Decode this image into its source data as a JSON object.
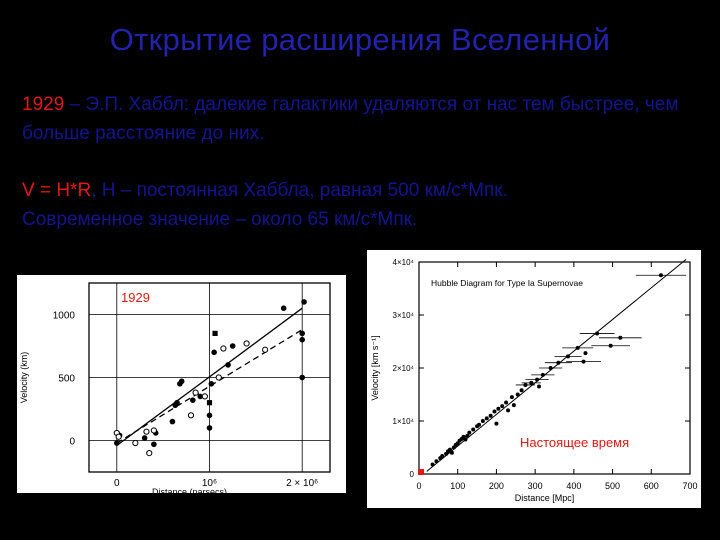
{
  "title": "Открытие расширения Вселенной",
  "para1": {
    "year": "1929",
    "rest": " – Э.П. Хаббл: далекие галактики удаляются от нас тем быстрее, чем больше расстояние до них."
  },
  "para2": {
    "formula": "V = H*R",
    "line1": ", H – постоянная Хаббла, равная 500 км/с*Мпк.",
    "line2": "Современное значение – около 65 км/с*Мпк."
  },
  "colors": {
    "background": "#000000",
    "title": "#2222aa",
    "text": "#14148c",
    "accent": "#e01818"
  },
  "chart_data": [
    {
      "type": "scatter",
      "overlay_label": "1929",
      "xlabel": "Distance (parsecs)",
      "ylabel": "Velocity (km)",
      "xticks": [
        {
          "value": 0,
          "label": "0"
        },
        {
          "value": 1000000,
          "label": "10⁶"
        },
        {
          "value": 2000000,
          "label": "2 × 10⁶"
        }
      ],
      "yticks": [
        {
          "value": 0,
          "label": "0"
        },
        {
          "value": 500,
          "label": "500"
        },
        {
          "value": 1000,
          "label": "1000"
        }
      ],
      "xlim": [
        -300000,
        2300000
      ],
      "ylim": [
        -250,
        1250
      ],
      "grid": true,
      "series": [
        {
          "marker": "filled",
          "points": [
            [
              0,
              -20
            ],
            [
              30000,
              40
            ],
            [
              300000,
              20
            ],
            [
              400000,
              -30
            ],
            [
              420000,
              60
            ],
            [
              600000,
              150
            ],
            [
              630000,
              280
            ],
            [
              650000,
              300
            ],
            [
              680000,
              450
            ],
            [
              700000,
              470
            ],
            [
              820000,
              320
            ],
            [
              900000,
              350
            ],
            [
              1000000,
              200
            ],
            [
              1000000,
              100
            ],
            [
              1020000,
              450
            ],
            [
              1050000,
              700
            ],
            [
              1200000,
              600
            ],
            [
              1250000,
              750
            ],
            [
              1800000,
              1050
            ],
            [
              2000000,
              850
            ],
            [
              2000000,
              800
            ],
            [
              2020000,
              1100
            ],
            [
              2000000,
              500
            ]
          ]
        },
        {
          "marker": "open",
          "points": [
            [
              0,
              60
            ],
            [
              20000,
              30
            ],
            [
              200000,
              -20
            ],
            [
              320000,
              70
            ],
            [
              350000,
              -100
            ],
            [
              400000,
              80
            ],
            [
              800000,
              200
            ],
            [
              850000,
              380
            ],
            [
              950000,
              350
            ],
            [
              1100000,
              500
            ],
            [
              1150000,
              730
            ],
            [
              1400000,
              770
            ],
            [
              1600000,
              720
            ]
          ]
        },
        {
          "marker": "square",
          "points": [
            [
              1000000,
              300
            ],
            [
              1060000,
              850
            ]
          ]
        }
      ],
      "fit_lines": [
        {
          "style": "solid",
          "x": [
            0,
            2000000
          ],
          "y": [
            -40,
            1050
          ]
        },
        {
          "style": "dashed",
          "x": [
            0,
            2000000
          ],
          "y": [
            -20,
            880
          ]
        }
      ]
    },
    {
      "type": "scatter",
      "legend_title": "Hubble Diagram for Type Ia Supernovae",
      "overlay_label": "Настоящее время",
      "xlabel": "Distance [Mpc]",
      "ylabel": "Velocity [km s⁻¹]",
      "xlim": [
        0,
        700
      ],
      "ylim": [
        0,
        40000
      ],
      "xticks": [
        0,
        100,
        200,
        300,
        400,
        500,
        600,
        700
      ],
      "yticks": [
        {
          "value": 0,
          "label": "0"
        },
        {
          "value": 10000,
          "label": "1×10⁴"
        },
        {
          "value": 20000,
          "label": "2×10⁴"
        },
        {
          "value": 30000,
          "label": "3×10⁴"
        },
        {
          "value": 40000,
          "label": "4×10⁴"
        }
      ],
      "fit_line": {
        "x": [
          20,
          690
        ],
        "y": [
          500,
          40500
        ]
      },
      "points": [
        [
          35,
          1800
        ],
        [
          45,
          2400
        ],
        [
          55,
          3000
        ],
        [
          60,
          3400
        ],
        [
          70,
          3800
        ],
        [
          75,
          4300
        ],
        [
          80,
          4600
        ],
        [
          90,
          5000
        ],
        [
          95,
          5500
        ],
        [
          100,
          5800
        ],
        [
          105,
          6300
        ],
        [
          110,
          6600
        ],
        [
          115,
          7000
        ],
        [
          125,
          7200
        ],
        [
          130,
          7800
        ],
        [
          140,
          8400
        ],
        [
          150,
          9000
        ],
        [
          155,
          9300
        ],
        [
          165,
          10000
        ],
        [
          175,
          10500
        ],
        [
          185,
          11000
        ],
        [
          195,
          11800
        ],
        [
          205,
          12300
        ],
        [
          215,
          12800
        ],
        [
          225,
          13500
        ],
        [
          240,
          14500
        ],
        [
          255,
          15000
        ],
        [
          265,
          15800
        ],
        [
          275,
          16800
        ],
        [
          290,
          17200
        ],
        [
          305,
          17800
        ],
        [
          320,
          18700
        ],
        [
          340,
          20000
        ],
        [
          360,
          21000
        ],
        [
          385,
          22200
        ],
        [
          410,
          23800
        ],
        [
          425,
          21200
        ],
        [
          430,
          22800
        ],
        [
          460,
          26500
        ],
        [
          495,
          24200
        ],
        [
          520,
          25700
        ],
        [
          625,
          37500
        ],
        [
          85,
          4000
        ],
        [
          120,
          6500
        ],
        [
          200,
          9500
        ],
        [
          230,
          12000
        ],
        [
          310,
          16500
        ],
        [
          245,
          13000
        ]
      ],
      "points_errors_x": [
        [
          275,
          16800,
          25
        ],
        [
          340,
          20000,
          30
        ],
        [
          410,
          23800,
          40
        ],
        [
          425,
          21200,
          45
        ],
        [
          460,
          26500,
          45
        ],
        [
          495,
          24200,
          50
        ],
        [
          520,
          25700,
          55
        ],
        [
          625,
          37500,
          65
        ],
        [
          290,
          17200,
          25
        ],
        [
          305,
          17800,
          30
        ],
        [
          320,
          18700,
          30
        ],
        [
          360,
          21000,
          35
        ],
        [
          385,
          22200,
          35
        ]
      ]
    }
  ]
}
